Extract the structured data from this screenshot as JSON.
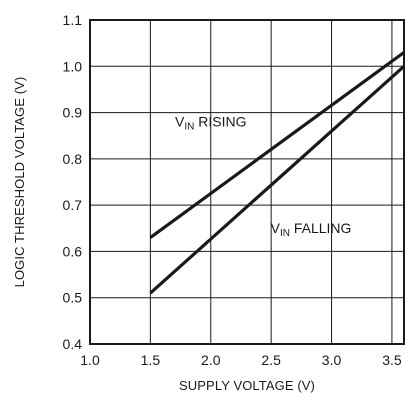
{
  "chart_data": {
    "type": "line",
    "title": "",
    "xlabel": "SUPPLY VOLTAGE (V)",
    "ylabel": "LOGIC THRESHOLD VOLTAGE (V)",
    "xlim": [
      1.0,
      3.6
    ],
    "ylim": [
      0.4,
      1.1
    ],
    "x_ticks": [
      1.0,
      1.5,
      2.0,
      2.5,
      3.0,
      3.5
    ],
    "x_tick_labels": [
      "1.0",
      "1.5",
      "2.0",
      "2.5",
      "3.0",
      "3.5"
    ],
    "y_ticks": [
      0.4,
      0.5,
      0.6,
      0.7,
      0.8,
      0.9,
      1.0,
      1.1
    ],
    "y_tick_labels": [
      "0.4",
      "0.5",
      "0.6",
      "0.7",
      "0.8",
      "0.9",
      "1.0",
      "1.1"
    ],
    "grid": true,
    "legend": "none",
    "line_color": "#1a1a1a",
    "series": [
      {
        "name": "VIN RISING",
        "x": [
          1.5,
          3.6
        ],
        "y": [
          0.63,
          1.03
        ]
      },
      {
        "name": "VIN FALLING",
        "x": [
          1.5,
          3.6
        ],
        "y": [
          0.51,
          1.0
        ]
      }
    ],
    "annotations": [
      {
        "main": "V",
        "sub": "IN",
        "rest": " RISING",
        "x": 2.0,
        "y": 0.87
      },
      {
        "main": "V",
        "sub": "IN",
        "rest": " FALLING",
        "x": 2.83,
        "y": 0.64
      }
    ]
  }
}
